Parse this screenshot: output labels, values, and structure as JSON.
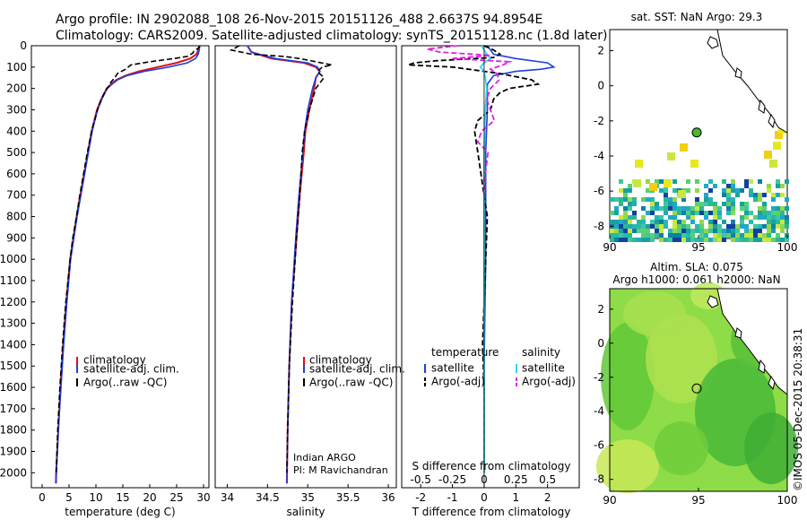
{
  "header": {
    "title_line1": "Argo profile: IN 2902088_108 26-Nov-2015 20151126_488 2.6637S 94.8954E",
    "title_line2": "Climatology: CARS2009. Satellite-adjusted climatology: synTS_20151128.nc (1.8d later)"
  },
  "colors": {
    "climatology": "#dd1111",
    "satellite": "#1f3fe0",
    "argo": "#000000",
    "sal_satellite": "#30d8f0",
    "sal_argo": "#e020e0",
    "land": "#ffffff",
    "sla_green": "#55d040"
  },
  "chart_data": [
    {
      "type": "line",
      "id": "temperature",
      "xlabel": "temperature (deg C)",
      "xlim": [
        -2,
        31
      ],
      "ylim": [
        2070,
        0
      ],
      "xticks": [
        "0",
        "5",
        "10",
        "15",
        "20",
        "25",
        "30"
      ],
      "yticks": [
        "0",
        "100",
        "200",
        "300",
        "400",
        "500",
        "600",
        "700",
        "800",
        "900",
        "1000",
        "1100",
        "1200",
        "1300",
        "1400",
        "1500",
        "1600",
        "1700",
        "1800",
        "1900",
        "2000"
      ],
      "legend": [
        "climatology",
        "satellite-adj. clim.",
        "Argo(..raw -QC)"
      ],
      "series": [
        {
          "name": "climatology",
          "depth": [
            0,
            20,
            40,
            60,
            80,
            100,
            120,
            140,
            160,
            180,
            200,
            250,
            300,
            400,
            500,
            600,
            700,
            800,
            900,
            1000,
            1200,
            1400,
            1600,
            1800,
            2000,
            2050
          ],
          "values": [
            29.2,
            29.0,
            28.7,
            27.5,
            25.0,
            21.5,
            18.0,
            15.5,
            13.8,
            12.8,
            12.0,
            11.0,
            10.2,
            9.2,
            8.5,
            7.8,
            7.1,
            6.4,
            5.8,
            5.2,
            4.5,
            3.9,
            3.4,
            3.0,
            2.6,
            2.55
          ]
        },
        {
          "name": "satellite-adj. clim.",
          "depth": [
            0,
            20,
            40,
            60,
            80,
            100,
            120,
            140,
            160,
            180,
            200,
            250,
            300,
            400,
            500,
            600,
            700,
            800,
            900,
            1000,
            1200,
            1400,
            1600,
            1800,
            2000,
            2050
          ],
          "values": [
            29.3,
            29.2,
            29.0,
            28.5,
            27.0,
            23.5,
            19.0,
            15.8,
            14.0,
            13.0,
            12.1,
            11.1,
            10.3,
            9.3,
            8.6,
            7.9,
            7.2,
            6.5,
            5.9,
            5.3,
            4.6,
            4.0,
            3.5,
            3.0,
            2.65,
            2.6
          ]
        },
        {
          "name": "Argo(..raw -QC)",
          "depth": [
            0,
            10,
            25,
            35,
            50,
            60,
            75,
            90,
            110,
            130,
            150,
            170,
            190,
            210,
            250,
            300,
            400,
            500,
            600,
            700,
            800,
            900,
            1000,
            1200,
            1400,
            1600,
            1800,
            2000
          ],
          "values": [
            29.3,
            29.1,
            28.2,
            28.0,
            27.0,
            24.5,
            20.0,
            16.5,
            15.5,
            14.0,
            13.5,
            12.8,
            12.4,
            11.8,
            11.0,
            10.3,
            9.2,
            8.4,
            7.7,
            7.0,
            6.4,
            5.7,
            5.2,
            4.4,
            3.8,
            3.3,
            2.9,
            2.6
          ]
        }
      ]
    },
    {
      "type": "line",
      "id": "salinity",
      "xlabel": "salinity",
      "xlim": [
        33.85,
        36.1
      ],
      "ylim": [
        2070,
        0
      ],
      "xticks": [
        "34",
        "34.5",
        "35",
        "35.5",
        "36"
      ],
      "legend": [
        "climatology",
        "satellite-adj. clim.",
        "Argo(..raw -QC)"
      ],
      "annotation": [
        "Indian ARGO",
        "PI: M Ravichandran"
      ],
      "series": [
        {
          "name": "climatology",
          "depth": [
            0,
            30,
            60,
            80,
            100,
            120,
            150,
            200,
            300,
            400,
            500,
            700,
            900,
            1200,
            1500,
            1800,
            2050
          ],
          "values": [
            34.25,
            34.3,
            34.55,
            34.95,
            35.1,
            35.15,
            35.1,
            35.08,
            35.02,
            34.97,
            34.95,
            34.9,
            34.86,
            34.8,
            34.77,
            34.75,
            34.74
          ]
        },
        {
          "name": "satellite-adj. clim.",
          "depth": [
            0,
            30,
            60,
            80,
            100,
            120,
            150,
            200,
            300,
            400,
            500,
            700,
            900,
            1200,
            1500,
            1800,
            2050
          ],
          "values": [
            34.25,
            34.3,
            34.6,
            35.0,
            35.12,
            35.15,
            35.1,
            35.06,
            35.0,
            34.96,
            34.94,
            34.89,
            34.85,
            34.8,
            34.77,
            34.75,
            34.74
          ]
        },
        {
          "name": "Argo(..raw -QC)",
          "depth": [
            0,
            20,
            40,
            50,
            60,
            75,
            90,
            100,
            120,
            150,
            200,
            300,
            400,
            500,
            700,
            900,
            1200,
            1500,
            1800,
            2000
          ],
          "values": [
            34.15,
            34.05,
            34.3,
            34.7,
            34.9,
            35.1,
            35.3,
            35.18,
            35.12,
            35.2,
            35.1,
            35.02,
            34.96,
            34.93,
            34.9,
            34.86,
            34.81,
            34.77,
            34.75,
            34.74
          ]
        }
      ]
    },
    {
      "type": "line",
      "id": "differences",
      "xlabel": "T difference from climatology",
      "xlabel_top": "S difference from climatology",
      "xlim": [
        -2.6,
        3.0
      ],
      "ylim": [
        2070,
        0
      ],
      "xticks_bottom": [
        "-2",
        "-1",
        "0",
        "1",
        "2"
      ],
      "xticks_top": [
        "-0.5",
        "-0.25",
        "0",
        "0.25",
        "0.5"
      ],
      "legend_temperature": [
        "temperature",
        "satellite",
        "Argo(-adj)"
      ],
      "legend_salinity": [
        "salinity",
        "satellite",
        "Argo(-adj)"
      ],
      "series": [
        {
          "name": "temperature satellite",
          "depth": [
            0,
            20,
            40,
            60,
            80,
            100,
            110,
            120,
            140,
            160,
            180,
            200,
            300,
            500,
            700,
            1000,
            1500,
            2000
          ],
          "values": [
            0.1,
            0.2,
            0.3,
            1.0,
            2.0,
            2.2,
            1.8,
            1.0,
            0.3,
            0.2,
            0.1,
            0.1,
            0.1,
            0.05,
            0.05,
            0.05,
            0.0,
            0.0
          ]
        },
        {
          "name": "temperature Argo(-adj)",
          "depth": [
            0,
            20,
            40,
            55,
            70,
            80,
            90,
            100,
            110,
            130,
            160,
            180,
            200,
            220,
            250,
            300,
            350,
            400,
            500,
            600,
            700,
            800,
            1000,
            1200,
            1400,
            1600,
            1800,
            2000
          ],
          "values": [
            0.0,
            0.3,
            0.5,
            0.3,
            -1.5,
            -2.2,
            -2.4,
            -1.0,
            -0.5,
            0.5,
            1.5,
            1.7,
            0.8,
            0.5,
            0.3,
            0.2,
            -0.2,
            -0.3,
            -0.2,
            -0.1,
            0.0,
            0.1,
            0.05,
            0.0,
            -0.05,
            0.0,
            0.0,
            0.0
          ]
        },
        {
          "name": "salinity satellite",
          "depth": [
            0,
            20,
            40,
            60,
            80,
            100,
            120,
            150,
            200,
            300,
            500,
            700,
            1000,
            1500,
            2000
          ],
          "values": [
            -0.02,
            0.0,
            0.02,
            0.05,
            0.0,
            -0.03,
            0.0,
            0.01,
            0.02,
            0.01,
            0.0,
            0.0,
            0.0,
            0.0,
            0.0
          ]
        },
        {
          "name": "salinity Argo(-adj)",
          "depth": [
            0,
            15,
            30,
            45,
            60,
            75,
            90,
            110,
            130,
            160,
            200,
            250,
            300,
            350,
            400,
            450,
            500,
            550,
            600,
            700
          ],
          "values": [
            -0.2,
            -0.45,
            -0.35,
            0.05,
            -0.25,
            0.2,
            0.15,
            0.05,
            0.1,
            0.12,
            0.05,
            0.02,
            0.05,
            0.08,
            -0.02,
            -0.05,
            0.03,
            0.02,
            0.01,
            0.0
          ]
        }
      ]
    },
    {
      "type": "heatmap",
      "id": "sst_map",
      "title": "sat. SST: NaN Argo: 29.3",
      "xlim": [
        90,
        100
      ],
      "ylim": [
        -8.7,
        3.2
      ],
      "xticks": [
        "90",
        "95",
        "100"
      ],
      "yticks": [
        "2",
        "0",
        "-2",
        "-4",
        "-6",
        "-8"
      ],
      "argo_position": [
        94.9,
        -2.66
      ]
    },
    {
      "type": "heatmap",
      "id": "sla_map",
      "title": "Altim. SLA: 0.075",
      "subtitle": "Argo h1000: 0.061 h2000: NaN",
      "xlim": [
        90,
        100
      ],
      "ylim": [
        -8.7,
        3.2
      ],
      "xticks": [
        "90",
        "95",
        "100"
      ],
      "yticks": [
        "2",
        "0",
        "-2",
        "-4",
        "-6",
        "-8"
      ],
      "argo_position": [
        94.9,
        -2.66
      ]
    }
  ],
  "footer": {
    "stamp": "©IMOS 05-Dec-2015 20:38:31"
  }
}
